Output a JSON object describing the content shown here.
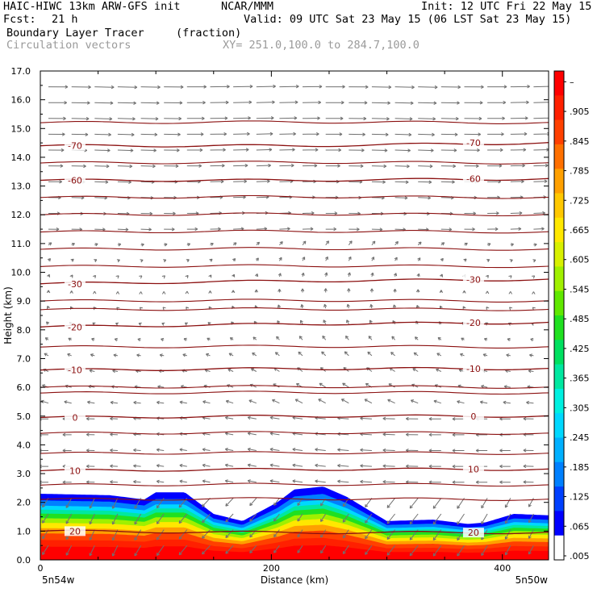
{
  "header": {
    "model": "HAIC-HIWC 13km ARW-GFS init",
    "center": "NCAR/MMM",
    "init": "Init: 12 UTC Fri 22 May 15",
    "fcst_label": "Fcst:",
    "fcst_value": "21 h",
    "valid": "Valid: 09 UTC Sat 23 May 15 (06 LST Sat 23 May 15)",
    "field1": "Boundary Layer Tracer",
    "field1_units": "(fraction)",
    "field2": "Circulation vectors",
    "xy": "XY= 251.0,100.0 to 284.7,100.0"
  },
  "colors": {
    "contour": "#8b1010",
    "vector": "#707070",
    "colorbar": [
      "#ffffff",
      "#0000ff",
      "#0040ff",
      "#0080ff",
      "#00b0ff",
      "#00d8ff",
      "#00f0e0",
      "#00e8a0",
      "#00e060",
      "#20e020",
      "#60e800",
      "#a0f000",
      "#d8f000",
      "#ffe800",
      "#ffc800",
      "#ffa000",
      "#ff7000",
      "#ff4000",
      "#ff2000",
      "#ff0000"
    ]
  },
  "chart_data": {
    "type": "heatmap",
    "title": "Boundary Layer Tracer (fraction)",
    "xlabel": "Distance (km)",
    "ylabel": "Height (km)",
    "xlim": [
      0,
      440
    ],
    "ylim": [
      0.0,
      17.0
    ],
    "x_ticks": [
      "0",
      "200",
      "400"
    ],
    "y_ticks": [
      "0.0",
      "1.0",
      "2.0",
      "3.0",
      "4.0",
      "5.0",
      "6.0",
      "7.0",
      "8.0",
      "9.0",
      "10.0",
      "11.0",
      "12.0",
      "13.0",
      "14.0",
      "15.0",
      "16.0",
      "17.0"
    ],
    "x_end_labels": {
      "left": "5n54w",
      "right": "5n50w"
    },
    "colorbar": {
      "labels": [
        ".005",
        ".065",
        ".125",
        ".185",
        ".245",
        ".305",
        ".365",
        ".425",
        ".485",
        ".545",
        ".605",
        ".665",
        ".725",
        ".785",
        ".845",
        ".905",
        "–"
      ],
      "range": [
        0.005,
        0.965
      ]
    },
    "tracer_top": [
      {
        "x": 0,
        "height": 2.3
      },
      {
        "x": 60,
        "height": 2.25
      },
      {
        "x": 90,
        "height": 2.1
      },
      {
        "x": 100,
        "height": 2.35
      },
      {
        "x": 125,
        "height": 2.35
      },
      {
        "x": 150,
        "height": 1.6
      },
      {
        "x": 175,
        "height": 1.35
      },
      {
        "x": 205,
        "height": 2.0
      },
      {
        "x": 220,
        "height": 2.45
      },
      {
        "x": 245,
        "height": 2.55
      },
      {
        "x": 265,
        "height": 2.2
      },
      {
        "x": 300,
        "height": 1.35
      },
      {
        "x": 340,
        "height": 1.4
      },
      {
        "x": 370,
        "height": 1.25
      },
      {
        "x": 385,
        "height": 1.3
      },
      {
        "x": 410,
        "height": 1.6
      },
      {
        "x": 440,
        "height": 1.55
      }
    ],
    "isotherms": [
      {
        "label": "-70",
        "heights": [
          14.4,
          14.4,
          14.5
        ]
      },
      {
        "label": "-60",
        "heights": [
          13.2,
          13.2,
          13.25
        ]
      },
      {
        "label": "-30",
        "heights": [
          9.6,
          9.7,
          9.75
        ]
      },
      {
        "label": "-20",
        "heights": [
          8.1,
          8.2,
          8.25
        ]
      },
      {
        "label": "-10",
        "heights": [
          6.6,
          6.65,
          6.65
        ]
      },
      {
        "label": "0",
        "heights": [
          4.95,
          5.0,
          5.0
        ]
      },
      {
        "label": "10",
        "heights": [
          3.1,
          3.15,
          3.15
        ]
      },
      {
        "label": "20",
        "heights": [
          1.0,
          0.95,
          0.95
        ]
      }
    ],
    "unlabeled_isotherm_heights": [
      15.2,
      13.8,
      12.6,
      12.0,
      11.4,
      10.8,
      10.2,
      9.0,
      8.7,
      7.4,
      6.0,
      5.8,
      4.4,
      3.7,
      2.6,
      2.1
    ]
  }
}
